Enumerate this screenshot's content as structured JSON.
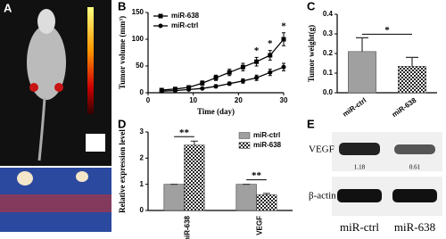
{
  "panel_a": {
    "label": "A"
  },
  "chart_data": [
    {
      "type": "line",
      "label": "B",
      "x_label": "Time (day)",
      "y_label": "Tumor volume (mm³)",
      "x": [
        3,
        6,
        9,
        12,
        15,
        18,
        21,
        24,
        27,
        30
      ],
      "series": [
        {
          "name": "miR-638",
          "color": "#000000",
          "marker": "square",
          "values": [
            5,
            7,
            10,
            18,
            28,
            38,
            48,
            58,
            70,
            100
          ],
          "errors": [
            2,
            2,
            3,
            4,
            5,
            6,
            7,
            8,
            9,
            12
          ]
        },
        {
          "name": "miR-ctrl",
          "color": "#000000",
          "marker": "circle",
          "values": [
            3,
            4,
            6,
            8,
            12,
            17,
            22,
            28,
            38,
            48
          ],
          "errors": [
            1,
            1,
            2,
            2,
            3,
            3,
            4,
            5,
            6,
            7
          ]
        }
      ],
      "xlim": [
        0,
        30
      ],
      "xticks": [
        0,
        10,
        20,
        30
      ],
      "ylim": [
        0,
        150
      ],
      "yticks": [
        0,
        50,
        100,
        150
      ],
      "annotations": [
        "*",
        "*",
        "*"
      ]
    },
    {
      "type": "bar",
      "label": "C",
      "y_label": "Tumor weight(g)",
      "categories": [
        "miR-ctrl",
        "miR-638"
      ],
      "series": [
        {
          "name": "Tumor weight",
          "colors": [
            "#a0a0a0",
            "checker"
          ],
          "values": [
            0.21,
            0.135
          ],
          "errors": [
            0.07,
            0.045
          ]
        }
      ],
      "ylim": [
        0,
        0.4
      ],
      "yticks": [
        {
          "value": 0,
          "label": "0.0"
        },
        0.1,
        0.2,
        0.3,
        0.4
      ],
      "annotations": [
        "*"
      ]
    },
    {
      "type": "grouped_bar",
      "label": "D",
      "y_label": "Relative expression level",
      "categories": [
        "miR-638",
        "VEGF"
      ],
      "series": [
        {
          "name": "miR-ctrl",
          "color": "#a0a0a0",
          "values": [
            1,
            1
          ],
          "errors": [
            0,
            0
          ]
        },
        {
          "name": "miR-638",
          "color": "checker",
          "values": [
            2.5,
            0.6
          ],
          "errors": [
            0.15,
            0.05
          ]
        }
      ],
      "ylim": [
        0,
        3
      ],
      "yticks": [
        0,
        1,
        2,
        3
      ],
      "annotations": [
        "**",
        "**"
      ]
    }
  ],
  "panel_e": {
    "label": "E",
    "rows": [
      "VEGF",
      "β-actin"
    ],
    "ratios": [
      "1.18",
      "0.61"
    ],
    "lanes": [
      "miR-ctrl",
      "miR-638"
    ]
  }
}
